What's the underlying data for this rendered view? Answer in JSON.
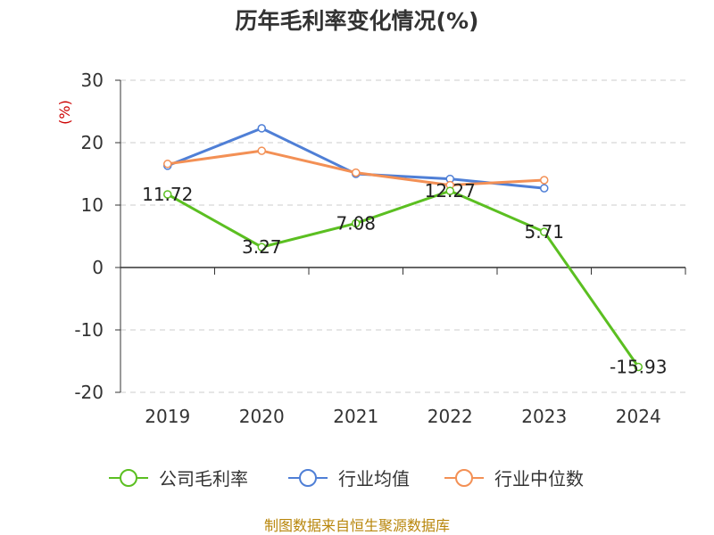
{
  "chart_data": {
    "type": "line",
    "title": "历年毛利率变化情况(%)",
    "unit_label": "(%)",
    "categories": [
      "2019",
      "2020",
      "2021",
      "2022",
      "2023",
      "2024"
    ],
    "ylim": [
      -20,
      30
    ],
    "yticks": [
      "30",
      "20",
      "10",
      "0",
      "-10",
      "-20"
    ],
    "grid": true,
    "legend_position": "bottom",
    "series": [
      {
        "name": "公司毛利率",
        "color": "#5bbf21",
        "values": [
          11.72,
          3.27,
          7.08,
          12.27,
          5.71,
          -15.93
        ],
        "labels": [
          "11.72",
          "3.27",
          "7.08",
          "12.27",
          "5.71",
          "-15.93"
        ]
      },
      {
        "name": "行业均值",
        "color": "#4f7fd6",
        "values": [
          16.3,
          22.3,
          15.0,
          14.2,
          12.7,
          null
        ]
      },
      {
        "name": "行业中位数",
        "color": "#f39055",
        "values": [
          16.6,
          18.7,
          15.2,
          13.2,
          14.0,
          null
        ]
      }
    ]
  },
  "footer": {
    "source": "制图数据来自恒生聚源数据库"
  }
}
